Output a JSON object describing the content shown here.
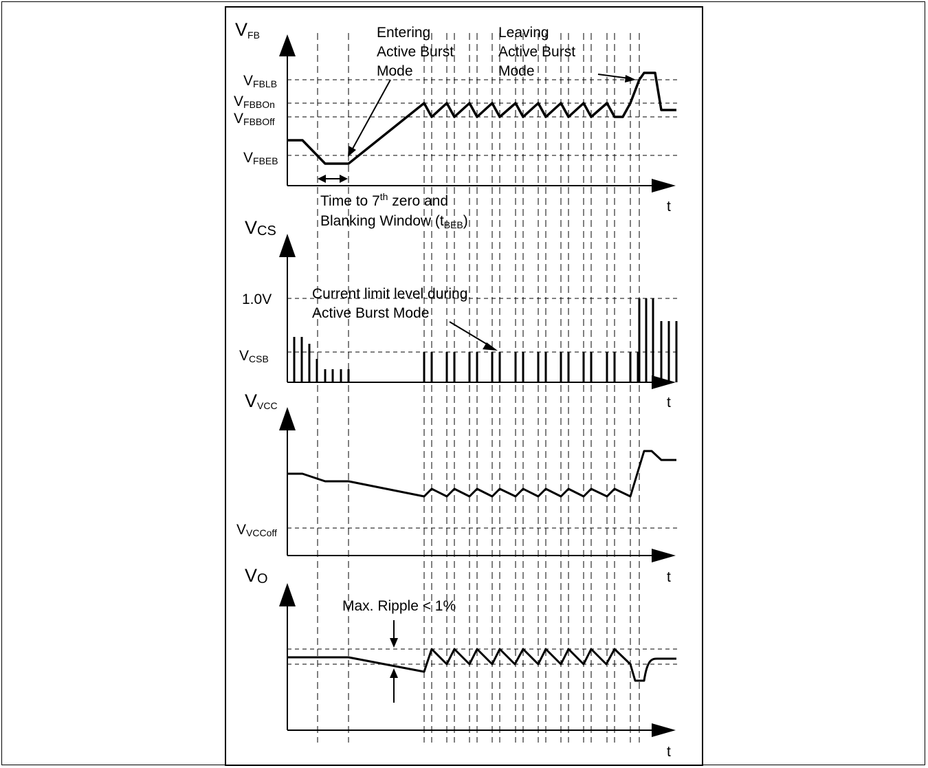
{
  "panels": {
    "fb": {
      "ylabel": "V",
      "ylabel_sub": "FB",
      "t": "t",
      "levels": [
        {
          "main": "V",
          "sub": "FBLB"
        },
        {
          "main": "V",
          "sub": "FBBOn"
        },
        {
          "main": "V",
          "sub": "FBBOff"
        },
        {
          "main": "V",
          "sub": "FBEB"
        }
      ],
      "enter_note": [
        "Entering",
        "Active Burst",
        "Mode"
      ],
      "leave_note": [
        "Leaving",
        "Active Burst",
        "Mode"
      ],
      "time_note_pre": "Time to 7",
      "time_note_sup": "th",
      "time_note_post": " zero and",
      "time_note2_pre": "Blanking Window (t",
      "time_note2_sub": "BEB",
      "time_note2_post": ")"
    },
    "cs": {
      "ylabel": "V",
      "ylabel_sub": "CS",
      "t": "t",
      "level_1": "1.0V",
      "level_csb_main": "V",
      "level_csb_sub": "CSB",
      "note": [
        "Current limit level during",
        "Active Burst Mode"
      ]
    },
    "vcc": {
      "ylabel": "V",
      "ylabel_sub": "VCC",
      "t": "t",
      "level_main": "V",
      "level_sub": "VCCoff"
    },
    "vo": {
      "ylabel": "V",
      "ylabel_sub": "O",
      "t": "t",
      "note": "Max. Ripple < 1%"
    }
  }
}
